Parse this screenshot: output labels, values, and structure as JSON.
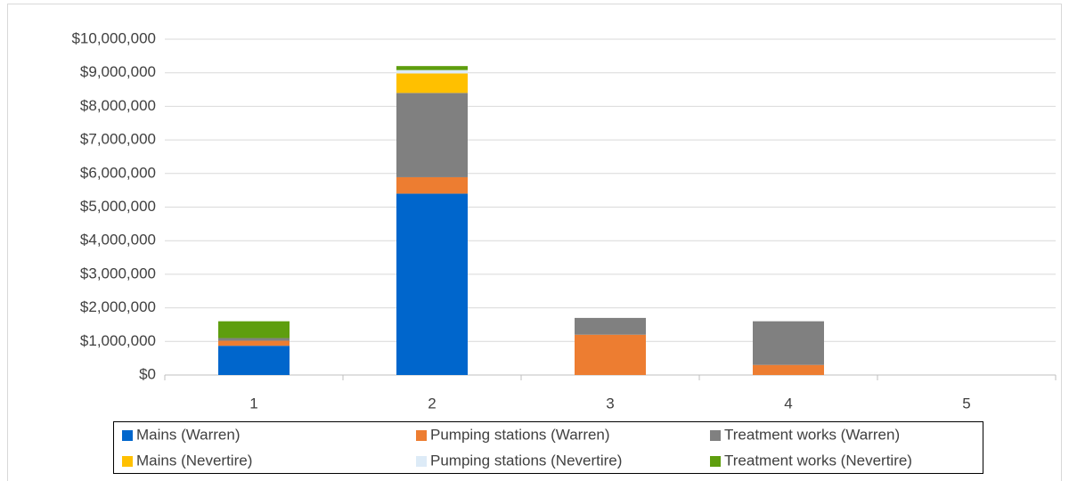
{
  "chart_data": {
    "type": "stacked_bar",
    "categories": [
      "1",
      "2",
      "3",
      "4",
      "5"
    ],
    "series": [
      {
        "name": "Mains (Warren)",
        "color": "#0066cc",
        "values": [
          870000,
          5400000,
          0,
          0,
          0
        ]
      },
      {
        "name": "Pumping stations (Warren)",
        "color": "#ed7d31",
        "values": [
          150000,
          490000,
          1200000,
          300000,
          0
        ]
      },
      {
        "name": "Treatment works (Warren)",
        "color": "#808080",
        "values": [
          80000,
          2510000,
          500000,
          1300000,
          0
        ]
      },
      {
        "name": "Mains (Nevertire)",
        "color": "#ffc000",
        "values": [
          0,
          580000,
          0,
          0,
          0
        ]
      },
      {
        "name": "Pumping stations (Nevertire)",
        "color": "#ddebf7",
        "values": [
          0,
          100000,
          0,
          0,
          0
        ]
      },
      {
        "name": "Treatment works (Nevertire)",
        "color": "#5e9e0e",
        "values": [
          500000,
          120000,
          0,
          0,
          0
        ]
      }
    ],
    "ylim": [
      0,
      10000000
    ],
    "yticks": [
      {
        "value": 0,
        "label": "$0"
      },
      {
        "value": 1000000,
        "label": "$1,000,000"
      },
      {
        "value": 2000000,
        "label": "$2,000,000"
      },
      {
        "value": 3000000,
        "label": "$3,000,000"
      },
      {
        "value": 4000000,
        "label": "$4,000,000"
      },
      {
        "value": 5000000,
        "label": "$5,000,000"
      },
      {
        "value": 6000000,
        "label": "$6,000,000"
      },
      {
        "value": 7000000,
        "label": "$7,000,000"
      },
      {
        "value": 8000000,
        "label": "$8,000,000"
      },
      {
        "value": 9000000,
        "label": "$9,000,000"
      },
      {
        "value": 10000000,
        "label": "$10,000,000"
      }
    ],
    "grid": true,
    "legend": "bottom"
  }
}
